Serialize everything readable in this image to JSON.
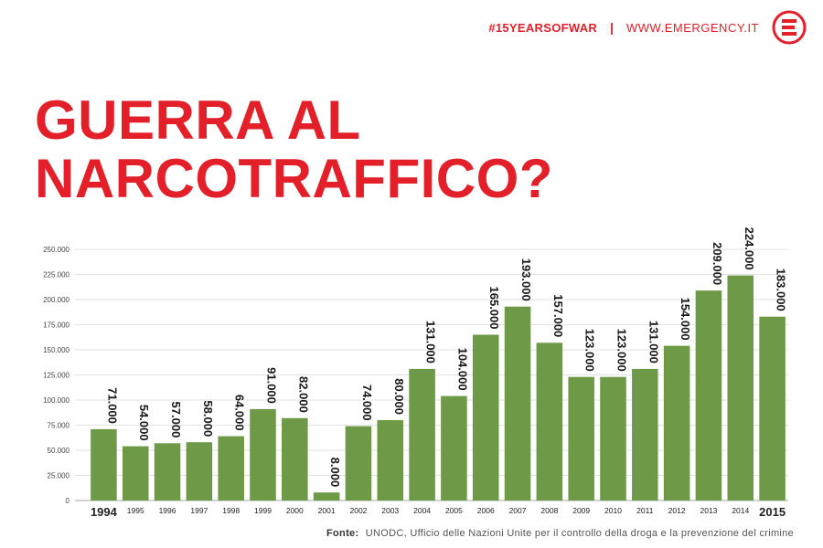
{
  "header": {
    "hashtag": "#15YEARSOFWAR",
    "separator": "|",
    "site": "WWW.EMERGENCY.IT",
    "accent_color": "#e3202a",
    "logo_icon": "emergency-e-logo-icon"
  },
  "title": {
    "line1": "GUERRA AL",
    "line2": "NARCOTRAFFICO?"
  },
  "source": {
    "label": "Fonte:",
    "text": "UNODC, Ufficio delle Nazioni Unite per il controllo della droga e la prevenzione del crimine"
  },
  "chart_data": {
    "type": "bar",
    "bar_color": "#6e9a48",
    "categories": [
      "1994",
      "1995",
      "1996",
      "1997",
      "1998",
      "1999",
      "2000",
      "2001",
      "2002",
      "2003",
      "2004",
      "2005",
      "2006",
      "2007",
      "2008",
      "2009",
      "2010",
      "2011",
      "2012",
      "2013",
      "2014",
      "2015"
    ],
    "values": [
      71000,
      54000,
      57000,
      58000,
      64000,
      91000,
      82000,
      8000,
      74000,
      80000,
      131000,
      104000,
      165000,
      193000,
      157000,
      123000,
      123000,
      131000,
      154000,
      209000,
      224000,
      183000
    ],
    "data_labels": [
      "71.000",
      "54.000",
      "57.000",
      "58.000",
      "64.000",
      "91.000",
      "82.000",
      "8.000",
      "74.000",
      "80.000",
      "131.000",
      "104.000",
      "165.000",
      "193.000",
      "157.000",
      "123.000",
      "123.000",
      "131.000",
      "154.000",
      "209.000",
      "224.000",
      "183.000"
    ],
    "y_ticks": [
      "0",
      "25.000",
      "50.000",
      "75.000",
      "100.000",
      "125.000",
      "150.000",
      "175.000",
      "200.000",
      "225.000",
      "250.000"
    ],
    "ylim": [
      0,
      250000
    ],
    "grid": true,
    "legend": "none",
    "highlighted_categories": [
      "1994",
      "2015"
    ]
  }
}
